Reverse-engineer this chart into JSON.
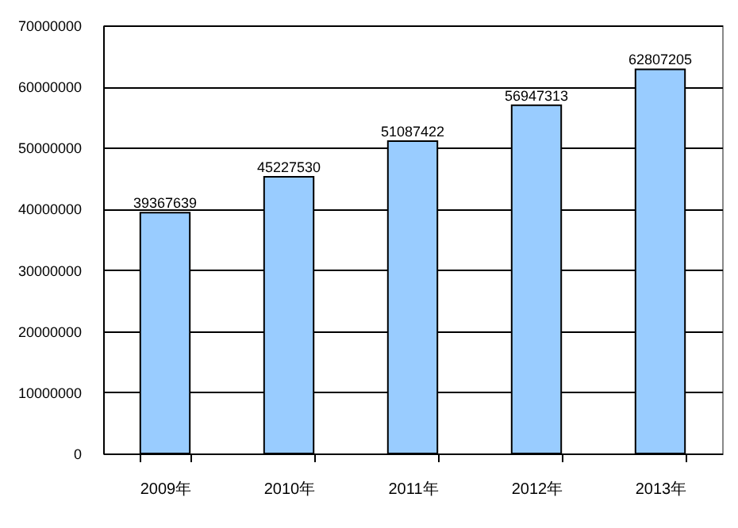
{
  "chart_data": {
    "type": "bar",
    "categories": [
      "2009年",
      "2010年",
      "2011年",
      "2012年",
      "2013年"
    ],
    "values": [
      39367639,
      45227530,
      51087422,
      56947313,
      62807205
    ],
    "color": "#99ccff",
    "ylim": [
      0,
      70000000
    ],
    "yticks": [
      0,
      10000000,
      20000000,
      30000000,
      40000000,
      50000000,
      60000000,
      70000000
    ],
    "grid": "y",
    "data_labels": true
  }
}
